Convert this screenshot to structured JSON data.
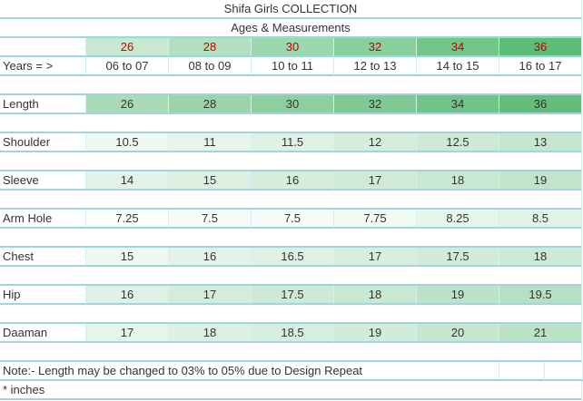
{
  "title": "Shifa Girls COLLECTION",
  "subtitle": "Ages & Measurements",
  "sizes": [
    26,
    28,
    30,
    32,
    34,
    36
  ],
  "years": {
    "label": "Years = >",
    "values": [
      "06 to 07",
      "08 to 09",
      "10 to 11",
      "12 to 13",
      "14 to 15",
      "16 to 17"
    ]
  },
  "rows": [
    {
      "label": "Length",
      "values": [
        26,
        28,
        30,
        32,
        34,
        36
      ]
    },
    {
      "label": "Shoulder",
      "values": [
        10.5,
        11,
        11.5,
        12,
        12.5,
        13
      ]
    },
    {
      "label": "Sleeve",
      "values": [
        14,
        15,
        16,
        17,
        18,
        19
      ]
    },
    {
      "label": "Arm Hole",
      "values": [
        7.25,
        7.5,
        7.5,
        7.75,
        8.25,
        8.5
      ]
    },
    {
      "label": "Chest",
      "values": [
        15,
        16,
        16.5,
        17,
        17.5,
        18
      ]
    },
    {
      "label": "Hip",
      "values": [
        16,
        17,
        17.5,
        18,
        19,
        19.5
      ]
    },
    {
      "label": "Daaman",
      "values": [
        17,
        18,
        18.5,
        19,
        20,
        21
      ]
    }
  ],
  "note": "Note:- Length may be changed to 03% to 05% due to Design Repeat",
  "footnote": "* inches"
}
